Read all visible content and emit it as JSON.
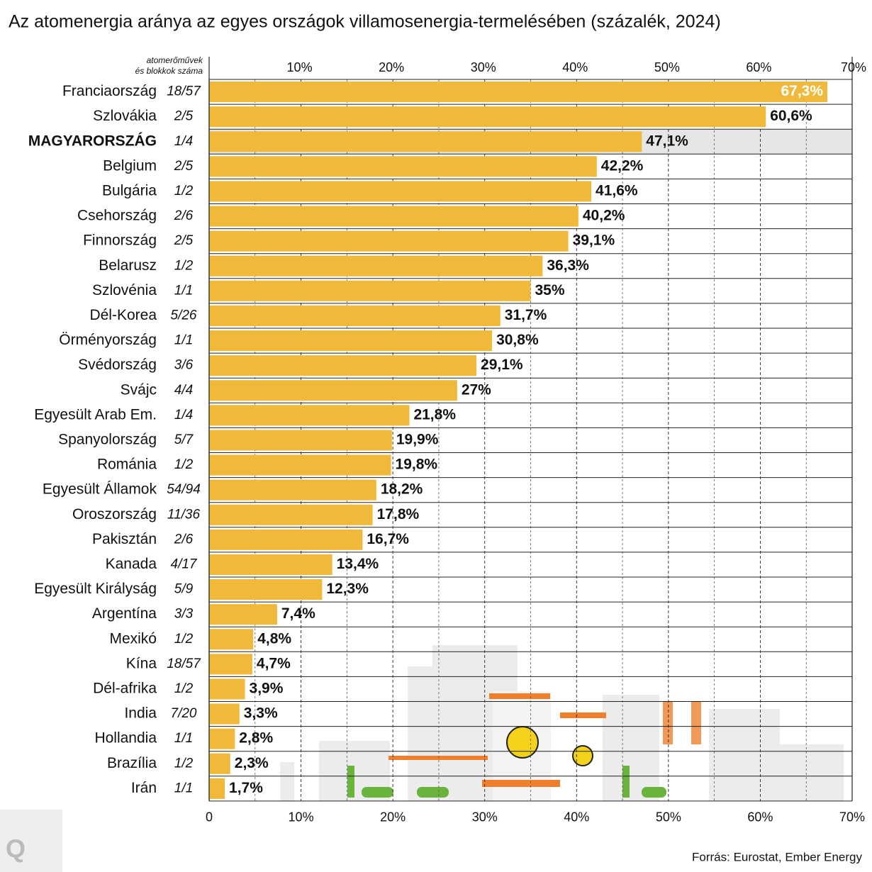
{
  "chart_data": {
    "type": "bar",
    "orientation": "horizontal",
    "title": "Az atomenergia aránya az egyes országok villamosenergia-termelésében (százalék, 2024)",
    "counts_header": [
      "atomerőművek",
      "és blokkok száma"
    ],
    "categories": [
      "Franciaország",
      "Szlovákia",
      "MAGYARORSZÁG",
      "Belgium",
      "Bulgária",
      "Csehország",
      "Finnország",
      "Belarusz",
      "Szlovénia",
      "Dél-Korea",
      "Örményország",
      "Svédország",
      "Svájc",
      "Egyesült Arab Em.",
      "Spanyolország",
      "Románia",
      "Egyesült Államok",
      "Oroszország",
      "Pakisztán",
      "Kanada",
      "Egyesült Királyság",
      "Argentína",
      "Mexikó",
      "Kína",
      "Dél-afrika",
      "India",
      "Hollandia",
      "Brazília",
      "Irán"
    ],
    "counts": [
      "18/57",
      "2/5",
      "1/4",
      "2/5",
      "1/2",
      "2/6",
      "2/5",
      "1/2",
      "1/1",
      "5/26",
      "1/1",
      "3/6",
      "4/4",
      "1/4",
      "5/7",
      "1/2",
      "54/94",
      "11/36",
      "2/6",
      "4/17",
      "5/9",
      "3/3",
      "1/2",
      "18/57",
      "1/2",
      "7/20",
      "1/1",
      "1/2",
      "1/1"
    ],
    "values": [
      67.3,
      60.6,
      47.1,
      42.2,
      41.6,
      40.2,
      39.1,
      36.3,
      35,
      31.7,
      30.8,
      29.1,
      27,
      21.8,
      19.9,
      19.8,
      18.2,
      17.8,
      16.7,
      13.4,
      12.3,
      7.4,
      4.8,
      4.7,
      3.9,
      3.3,
      2.8,
      2.3,
      1.7
    ],
    "value_labels": [
      "67,3%",
      "60,6%",
      "47,1%",
      "42,2%",
      "41,6%",
      "40,2%",
      "39,1%",
      "36,3%",
      "35%",
      "31,7%",
      "30,8%",
      "29,1%",
      "27%",
      "21,8%",
      "19,9%",
      "19,8%",
      "18,2%",
      "17,8%",
      "16,7%",
      "13,4%",
      "12,3%",
      "7,4%",
      "4,8%",
      "4,7%",
      "3,9%",
      "3,3%",
      "2,8%",
      "2,3%",
      "1,7%"
    ],
    "color": "#f0b93a",
    "highlight_index": 2,
    "highlight_color": "#e6e6e6",
    "xlim": [
      0,
      70
    ],
    "xticks": [
      0,
      {
        "value": 10,
        "label": "10%"
      },
      {
        "value": 20,
        "label": "20%"
      },
      {
        "value": 30,
        "label": "30%"
      },
      {
        "value": 40,
        "label": "40%"
      },
      {
        "value": 50,
        "label": "50%"
      },
      {
        "value": 60,
        "label": "60%"
      },
      {
        "value": 70,
        "label": "70%"
      }
    ],
    "xticks_top": [
      {
        "value": 10,
        "label": "10%"
      },
      {
        "value": 20,
        "label": "20%"
      },
      {
        "value": 30,
        "label": "30%"
      },
      {
        "value": 40,
        "label": "40%"
      },
      {
        "value": 50,
        "label": "50%"
      },
      {
        "value": 60,
        "label": "60%"
      },
      {
        "value": 70,
        "label": "70%"
      }
    ],
    "minor_xticks": [
      5,
      15,
      25,
      35,
      45,
      55,
      65
    ],
    "grid": true,
    "source": "Forrás: Eurostat, Ember Energy",
    "logo": "Q"
  }
}
